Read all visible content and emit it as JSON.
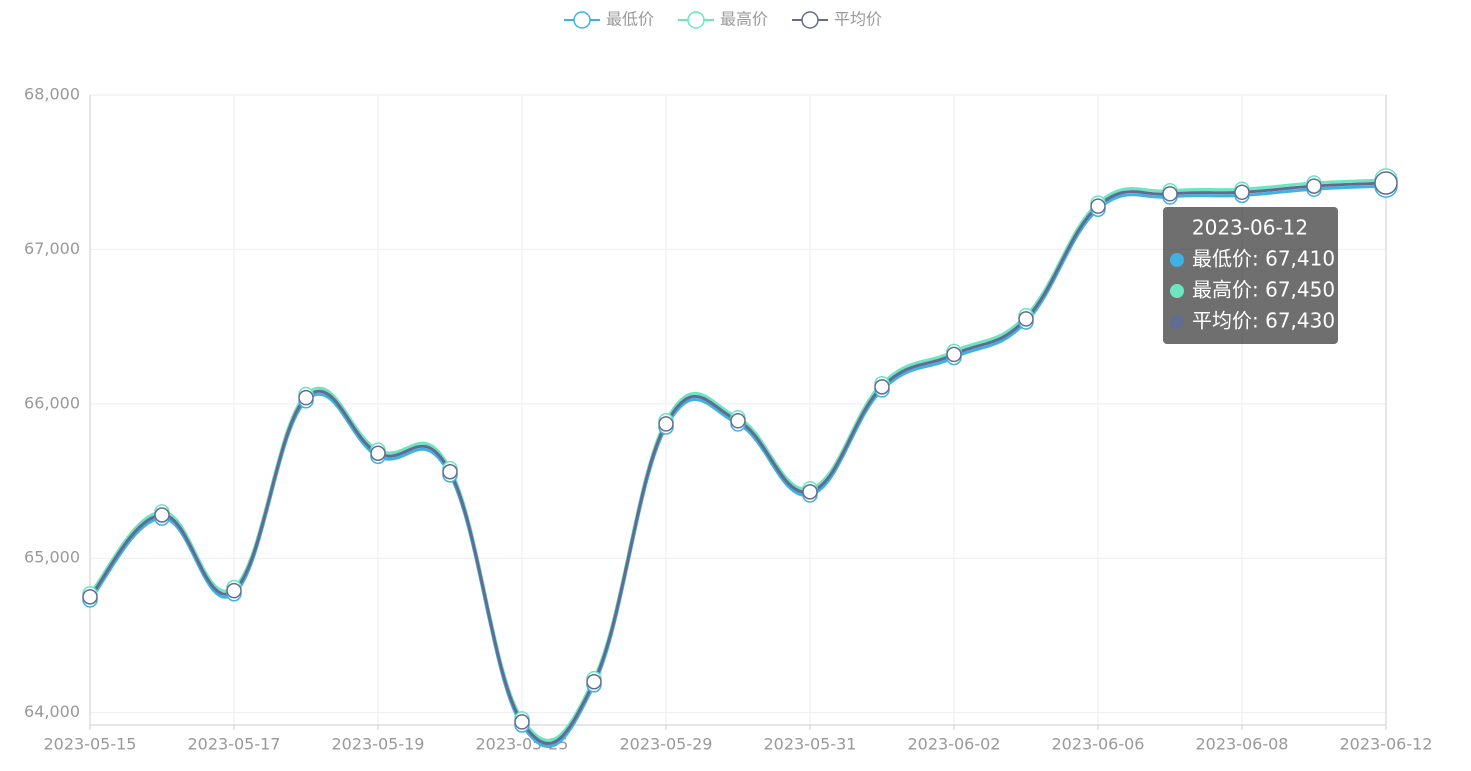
{
  "chart_data": {
    "type": "line",
    "smooth": true,
    "categories": [
      "2023-05-15",
      null,
      "2023-05-17",
      null,
      "2023-05-19",
      null,
      "2023-05-25",
      null,
      "2023-05-29",
      null,
      "2023-05-31",
      null,
      "2023-06-02",
      null,
      "2023-06-06",
      null,
      "2023-06-08",
      null,
      "2023-06-12"
    ],
    "series": [
      {
        "name": "最低价",
        "color": "#3fb1e3",
        "values": [
          64730,
          65260,
          64770,
          66020,
          65660,
          65540,
          63920,
          64180,
          65850,
          65870,
          65410,
          66090,
          66300,
          66530,
          67260,
          67340,
          67350,
          67390,
          67410
        ]
      },
      {
        "name": "最高价",
        "color": "#6be6c1",
        "values": [
          64770,
          65300,
          64810,
          66060,
          65700,
          65580,
          63960,
          64220,
          65890,
          65910,
          65450,
          66130,
          66340,
          66570,
          67300,
          67380,
          67390,
          67430,
          67450
        ]
      },
      {
        "name": "平均价",
        "color": "#626c91",
        "values": [
          64750,
          65280,
          64790,
          66040,
          65680,
          65560,
          63940,
          64200,
          65870,
          65890,
          65430,
          66110,
          66320,
          66550,
          67280,
          67360,
          67370,
          67410,
          67430
        ]
      }
    ],
    "ylim": [
      63920,
      68000
    ],
    "yticks": [
      {
        "value": 64000,
        "label": "64,000"
      },
      {
        "value": 65000,
        "label": "65,000"
      },
      {
        "value": 66000,
        "label": "66,000"
      },
      {
        "value": 67000,
        "label": "67,000"
      },
      {
        "value": 68000,
        "label": "68,000"
      }
    ],
    "grid": true,
    "legend": "top",
    "tooltip": {
      "title": "2023-06-12",
      "rows": [
        "最低价: 67,410",
        "最高价: 67,450",
        "平均价: 67,430"
      ]
    }
  }
}
